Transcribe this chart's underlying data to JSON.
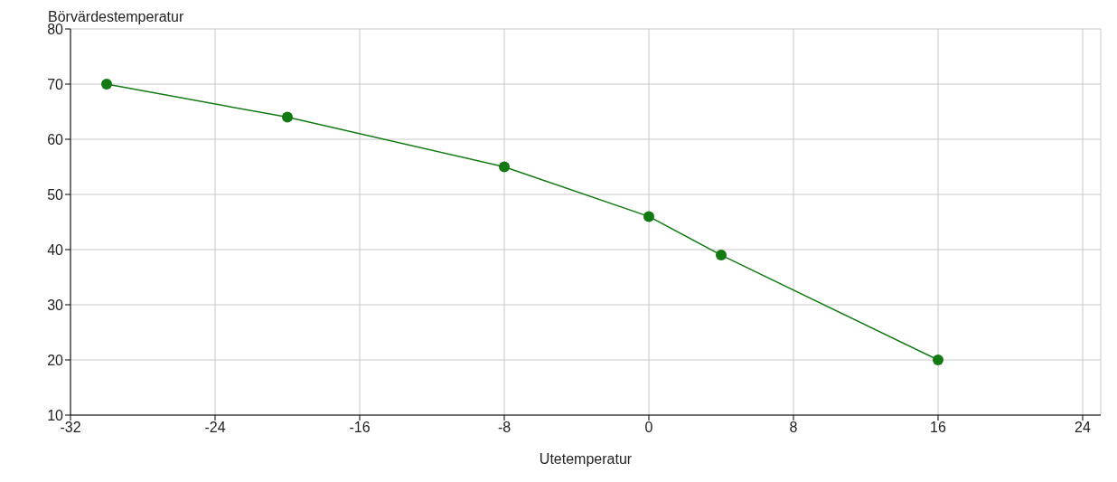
{
  "chart_data": {
    "type": "line",
    "xlabel": "Utetemperatur",
    "ylabel": "Börvärdestemperatur",
    "x": [
      -30,
      -20,
      -8,
      0,
      4,
      16
    ],
    "series": [
      {
        "color": "#137a13",
        "values": [
          70,
          64,
          55,
          46,
          39,
          20
        ]
      }
    ],
    "xlim": [
      -32,
      25
    ],
    "xticks": [
      -32,
      -24,
      -16,
      -8,
      0,
      8,
      16,
      24
    ],
    "ylim": [
      10,
      80
    ],
    "yticks": [
      10,
      20,
      30,
      40,
      50,
      60,
      70,
      80
    ],
    "grid": true,
    "marker": "circle",
    "line_style": "solid"
  }
}
